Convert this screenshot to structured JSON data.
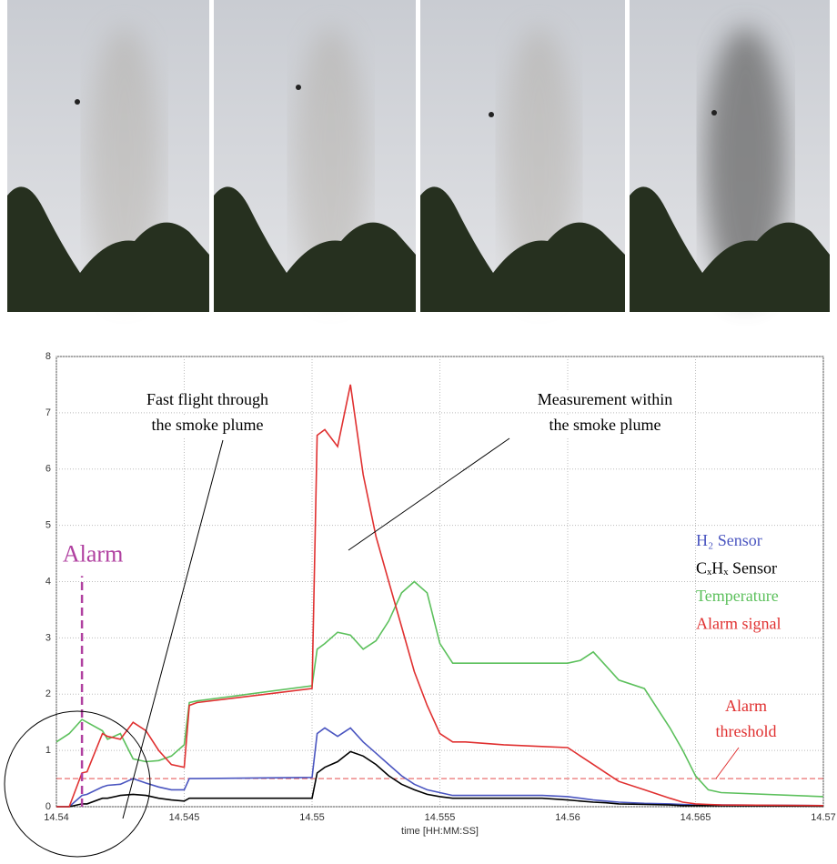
{
  "chart_data": {
    "type": "line",
    "xlabel": "time [HH:MM:SS]",
    "x": [
      14.54,
      14.5405,
      14.541,
      14.5412,
      14.5418,
      14.542,
      14.5425,
      14.543,
      14.5435,
      14.544,
      14.5445,
      14.545,
      14.5452,
      14.5455,
      14.55,
      14.5502,
      14.5505,
      14.551,
      14.5515,
      14.552,
      14.5525,
      14.553,
      14.5535,
      14.554,
      14.5545,
      14.555,
      14.5555,
      14.556,
      14.5575,
      14.559,
      14.56,
      14.5605,
      14.561,
      14.5615,
      14.562,
      14.563,
      14.564,
      14.5645,
      14.565,
      14.5655,
      14.566,
      14.57
    ],
    "series": [
      {
        "name": "H₂ Sensor",
        "color": "#4a55c0",
        "values": [
          0,
          0,
          0.2,
          0.22,
          0.35,
          0.38,
          0.4,
          0.5,
          0.42,
          0.35,
          0.3,
          0.3,
          0.5,
          0.5,
          0.52,
          1.3,
          1.4,
          1.25,
          1.4,
          1.15,
          0.95,
          0.75,
          0.55,
          0.4,
          0.3,
          0.25,
          0.2,
          0.2,
          0.2,
          0.2,
          0.18,
          0.15,
          0.12,
          0.1,
          0.08,
          0.06,
          0.05,
          0.04,
          0.03,
          0.03,
          0.03,
          0.02
        ]
      },
      {
        "name": "CₓHₓ Sensor",
        "color": "#000000",
        "values": [
          0,
          0,
          0.05,
          0.05,
          0.15,
          0.15,
          0.2,
          0.22,
          0.2,
          0.15,
          0.12,
          0.1,
          0.15,
          0.15,
          0.15,
          0.6,
          0.7,
          0.8,
          0.98,
          0.9,
          0.75,
          0.55,
          0.4,
          0.3,
          0.22,
          0.18,
          0.15,
          0.15,
          0.15,
          0.15,
          0.12,
          0.1,
          0.08,
          0.07,
          0.05,
          0.04,
          0.03,
          0.02,
          0.02,
          0.02,
          0.02,
          0.01
        ]
      },
      {
        "name": "Temperature",
        "color": "#5cc05c",
        "values": [
          1.15,
          1.3,
          1.55,
          1.5,
          1.35,
          1.2,
          1.3,
          0.85,
          0.8,
          0.82,
          0.9,
          1.1,
          1.85,
          1.88,
          2.15,
          2.8,
          2.9,
          3.1,
          3.05,
          2.8,
          2.95,
          3.3,
          3.8,
          4.0,
          3.8,
          2.9,
          2.55,
          2.55,
          2.55,
          2.55,
          2.55,
          2.6,
          2.75,
          2.5,
          2.25,
          2.1,
          1.4,
          1.0,
          0.55,
          0.3,
          0.25,
          0.18
        ]
      },
      {
        "name": "Alarm signal",
        "color": "#e03030",
        "values": [
          0,
          0,
          0.6,
          0.62,
          1.3,
          1.25,
          1.2,
          1.5,
          1.35,
          1.0,
          0.75,
          0.7,
          1.8,
          1.85,
          2.1,
          6.6,
          6.7,
          6.4,
          7.5,
          5.9,
          4.8,
          4.0,
          3.2,
          2.4,
          1.8,
          1.3,
          1.15,
          1.15,
          1.1,
          1.07,
          1.05,
          0.9,
          0.75,
          0.6,
          0.45,
          0.3,
          0.15,
          0.08,
          0.05,
          0.04,
          0.03,
          0.02
        ]
      }
    ],
    "xlim": [
      14.54,
      14.57
    ],
    "ylim": [
      0,
      8
    ],
    "xticks": [
      14.54,
      14.545,
      14.55,
      14.555,
      14.56,
      14.565,
      14.57
    ],
    "yticks": [
      0,
      1,
      2,
      3,
      4,
      5,
      6,
      7,
      8
    ],
    "grid": true,
    "alarm": {
      "label": "Alarm",
      "x": 14.541,
      "top": 4.1,
      "color": "#b040a0"
    },
    "threshold": {
      "label": [
        "Alarm",
        "threshold"
      ],
      "value": 0.5,
      "color": "#e03030"
    },
    "annotations": [
      {
        "lines": [
          "Fast flight through",
          "the smoke plume"
        ]
      },
      {
        "lines": [
          "Measurement within",
          "the smoke plume"
        ]
      }
    ]
  }
}
